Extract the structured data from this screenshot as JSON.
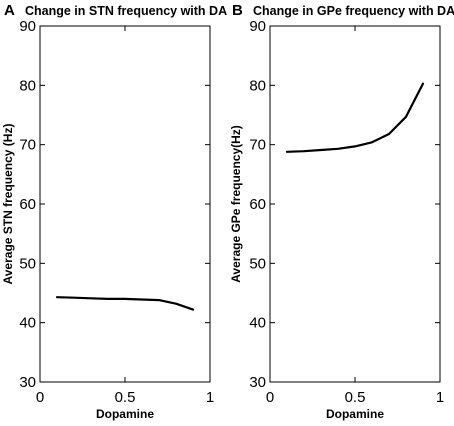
{
  "chart_data": [
    {
      "type": "line",
      "panel": "A",
      "title": "Change in STN frequency with DA",
      "xlabel": "Dopamine",
      "ylabel": "Average STN frequency  (Hz)",
      "xlim": [
        0,
        1
      ],
      "ylim": [
        30,
        90
      ],
      "xticks": [
        0,
        0.5,
        1
      ],
      "xtick_labels": [
        "0",
        "0.5",
        "1"
      ],
      "yticks": [
        30,
        40,
        50,
        60,
        70,
        80,
        90
      ],
      "ytick_labels": [
        "30",
        "40",
        "50",
        "60",
        "70",
        "80",
        "90"
      ],
      "grid": false,
      "series": [
        {
          "x": [
            0.1,
            0.2,
            0.3,
            0.4,
            0.5,
            0.6,
            0.7,
            0.8,
            0.9
          ],
          "y": [
            44.3,
            44.2,
            44.1,
            44.0,
            44.0,
            43.9,
            43.8,
            43.2,
            42.2
          ]
        }
      ]
    },
    {
      "type": "line",
      "panel": "B",
      "title": "Change in GPe frequency with DA",
      "xlabel": "Dopamine",
      "ylabel": "Average GPe frequency(Hz)",
      "xlim": [
        0,
        1
      ],
      "ylim": [
        30,
        90
      ],
      "xticks": [
        0,
        0.5,
        1
      ],
      "xtick_labels": [
        "0",
        "0.5",
        "1"
      ],
      "yticks": [
        30,
        40,
        50,
        60,
        70,
        80,
        90
      ],
      "ytick_labels": [
        "30",
        "40",
        "50",
        "60",
        "70",
        "80",
        "90"
      ],
      "grid": false,
      "series": [
        {
          "x": [
            0.1,
            0.2,
            0.3,
            0.4,
            0.5,
            0.6,
            0.7,
            0.8,
            0.9
          ],
          "y": [
            68.8,
            68.9,
            69.1,
            69.3,
            69.7,
            70.4,
            71.8,
            74.7,
            80.3
          ]
        }
      ]
    }
  ]
}
